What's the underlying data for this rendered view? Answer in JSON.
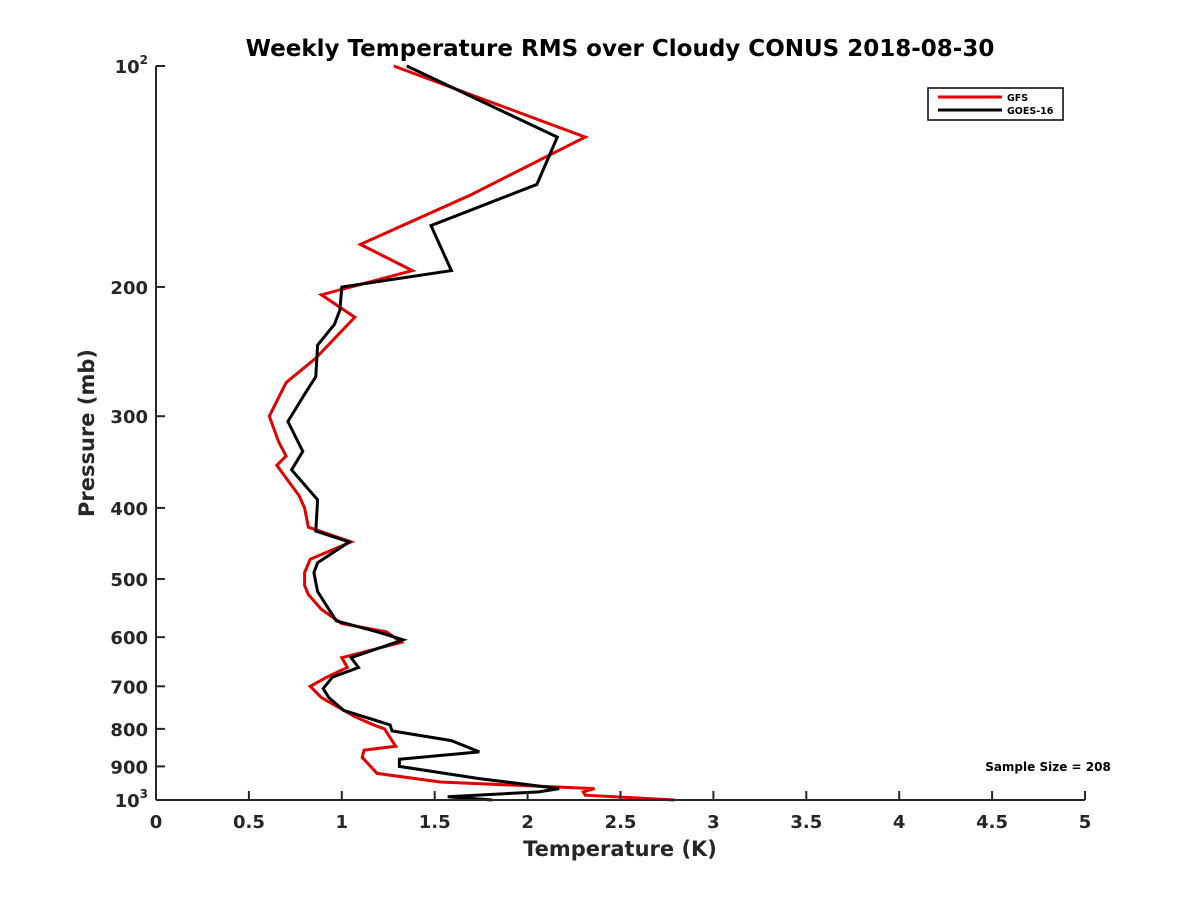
{
  "chart_data": {
    "type": "line",
    "title": "Weekly Temperature RMS over Cloudy CONUS 2018-08-30",
    "xlabel": "Temperature (K)",
    "ylabel": "Pressure (mb)",
    "xlim": [
      0,
      5
    ],
    "ylim": [
      100,
      1000
    ],
    "y_scale": "log",
    "y_reversed": true,
    "grid": false,
    "legend_location": "top-right",
    "x_ticks": [
      0,
      0.5,
      1,
      1.5,
      2,
      2.5,
      3,
      3.5,
      4,
      4.5,
      5
    ],
    "x_tick_labels": [
      "0",
      "0.5",
      "1",
      "1.5",
      "2",
      "2.5",
      "3",
      "3.5",
      "4",
      "4.5",
      "5"
    ],
    "y_ticks": [
      100,
      200,
      300,
      400,
      500,
      600,
      700,
      800,
      900,
      1000
    ],
    "y_tick_labels": [
      {
        "base": "10",
        "sup": "2"
      },
      {
        "base": "200",
        "sup": ""
      },
      {
        "base": "300",
        "sup": ""
      },
      {
        "base": "400",
        "sup": ""
      },
      {
        "base": "500",
        "sup": ""
      },
      {
        "base": "600",
        "sup": ""
      },
      {
        "base": "700",
        "sup": ""
      },
      {
        "base": "800",
        "sup": ""
      },
      {
        "base": "900",
        "sup": ""
      },
      {
        "base": "10",
        "sup": "3"
      }
    ],
    "series": [
      {
        "name": "GFS",
        "color": "#e00000",
        "points": [
          [
            1.28,
            100
          ],
          [
            2.31,
            125
          ],
          [
            1.69,
            150
          ],
          [
            1.1,
            175
          ],
          [
            1.38,
            190
          ],
          [
            0.89,
            205
          ],
          [
            1.07,
            220
          ],
          [
            0.86,
            250
          ],
          [
            0.7,
            270
          ],
          [
            0.61,
            300
          ],
          [
            0.66,
            325
          ],
          [
            0.7,
            340
          ],
          [
            0.65,
            350
          ],
          [
            0.77,
            385
          ],
          [
            0.8,
            400
          ],
          [
            0.82,
            425
          ],
          [
            1.05,
            445
          ],
          [
            0.83,
            470
          ],
          [
            0.8,
            490
          ],
          [
            0.8,
            510
          ],
          [
            0.82,
            525
          ],
          [
            0.89,
            550
          ],
          [
            1.0,
            575
          ],
          [
            1.24,
            590
          ],
          [
            1.32,
            610
          ],
          [
            1.0,
            640
          ],
          [
            1.03,
            660
          ],
          [
            0.92,
            680
          ],
          [
            0.83,
            700
          ],
          [
            0.89,
            725
          ],
          [
            1.07,
            770
          ],
          [
            1.17,
            790
          ],
          [
            1.23,
            800
          ],
          [
            1.29,
            845
          ],
          [
            1.12,
            855
          ],
          [
            1.11,
            875
          ],
          [
            1.19,
            920
          ],
          [
            1.53,
            945
          ],
          [
            2.36,
            965
          ],
          [
            2.3,
            975
          ],
          [
            2.31,
            985
          ],
          [
            2.79,
            1000
          ]
        ]
      },
      {
        "name": "GOES-16",
        "color": "#000000",
        "points": [
          [
            1.35,
            100
          ],
          [
            2.16,
            125
          ],
          [
            2.05,
            145
          ],
          [
            1.48,
            165
          ],
          [
            1.59,
            190
          ],
          [
            1.0,
            200
          ],
          [
            0.99,
            215
          ],
          [
            0.96,
            225
          ],
          [
            0.87,
            240
          ],
          [
            0.86,
            265
          ],
          [
            0.8,
            280
          ],
          [
            0.71,
            305
          ],
          [
            0.79,
            335
          ],
          [
            0.73,
            355
          ],
          [
            0.87,
            390
          ],
          [
            0.86,
            430
          ],
          [
            1.04,
            445
          ],
          [
            0.87,
            475
          ],
          [
            0.85,
            490
          ],
          [
            0.87,
            520
          ],
          [
            0.97,
            570
          ],
          [
            1.19,
            590
          ],
          [
            1.33,
            605
          ],
          [
            1.05,
            640
          ],
          [
            1.09,
            660
          ],
          [
            0.95,
            680
          ],
          [
            0.9,
            705
          ],
          [
            0.93,
            725
          ],
          [
            1.01,
            755
          ],
          [
            1.26,
            790
          ],
          [
            1.27,
            805
          ],
          [
            1.59,
            830
          ],
          [
            1.74,
            860
          ],
          [
            1.31,
            880
          ],
          [
            1.31,
            900
          ],
          [
            1.74,
            935
          ],
          [
            2.17,
            965
          ],
          [
            2.06,
            975
          ],
          [
            1.57,
            990
          ],
          [
            1.81,
            1000
          ]
        ]
      }
    ],
    "annotation": "Sample Size = 208"
  }
}
